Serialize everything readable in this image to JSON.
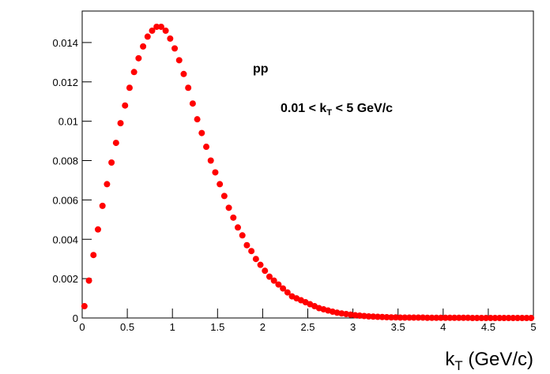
{
  "chart_data": {
    "type": "scatter",
    "annotations": [
      [
        "pp"
      ],
      [
        "0.01 < k",
        "T",
        " < 5 GeV/c"
      ]
    ],
    "x_label": [
      "k",
      "T",
      " (GeV/c)"
    ],
    "xlim": [
      0,
      5
    ],
    "xticks": [
      0,
      0.5,
      1,
      1.5,
      2,
      2.5,
      3,
      3.5,
      4,
      4.5,
      5
    ],
    "ylim": [
      0,
      0.0156
    ],
    "yticks": [
      0,
      0.002,
      0.004,
      0.006,
      0.008,
      0.01,
      0.012,
      0.014
    ],
    "color": "#ff0000",
    "x": [
      0.025,
      0.075,
      0.125,
      0.175,
      0.225,
      0.275,
      0.325,
      0.375,
      0.425,
      0.475,
      0.525,
      0.575,
      0.625,
      0.675,
      0.725,
      0.775,
      0.825,
      0.875,
      0.925,
      0.975,
      1.025,
      1.075,
      1.125,
      1.175,
      1.225,
      1.275,
      1.325,
      1.375,
      1.425,
      1.475,
      1.525,
      1.575,
      1.625,
      1.675,
      1.725,
      1.775,
      1.825,
      1.875,
      1.925,
      1.975,
      2.025,
      2.075,
      2.125,
      2.175,
      2.225,
      2.275,
      2.325,
      2.375,
      2.425,
      2.475,
      2.525,
      2.575,
      2.625,
      2.675,
      2.725,
      2.775,
      2.825,
      2.875,
      2.925,
      2.975,
      3.025,
      3.075,
      3.125,
      3.175,
      3.225,
      3.275,
      3.325,
      3.375,
      3.425,
      3.475,
      3.525,
      3.575,
      3.625,
      3.675,
      3.725,
      3.775,
      3.825,
      3.875,
      3.925,
      3.975,
      4.025,
      4.075,
      4.125,
      4.175,
      4.225,
      4.275,
      4.325,
      4.375,
      4.425,
      4.475,
      4.525,
      4.575,
      4.625,
      4.675,
      4.725,
      4.775,
      4.825,
      4.875,
      4.925,
      4.975
    ],
    "y": [
      0.0006,
      0.0019,
      0.0032,
      0.0045,
      0.0057,
      0.0068,
      0.0079,
      0.0089,
      0.0099,
      0.0108,
      0.0117,
      0.0125,
      0.0132,
      0.0138,
      0.0143,
      0.0146,
      0.0148,
      0.0148,
      0.0146,
      0.0142,
      0.0137,
      0.0131,
      0.0124,
      0.0117,
      0.0109,
      0.0101,
      0.0094,
      0.0087,
      0.008,
      0.0074,
      0.0068,
      0.0062,
      0.0056,
      0.0051,
      0.0046,
      0.0042,
      0.0037,
      0.0034,
      0.003,
      0.0027,
      0.0024,
      0.0021,
      0.0019,
      0.0017,
      0.0015,
      0.0013,
      0.0011,
      0.001,
      0.0009,
      0.0008,
      0.0007,
      0.0006,
      0.0005,
      0.00044,
      0.00038,
      0.00032,
      0.00027,
      0.00023,
      0.0002,
      0.00017,
      0.00014,
      0.00012,
      0.0001,
      8e-05,
      7e-05,
      6e-05,
      5e-05,
      4e-05,
      3e-05,
      3e-05,
      2e-05,
      2e-05,
      2e-05,
      2e-05,
      2e-05,
      2e-05,
      1e-05,
      1e-05,
      1e-05,
      1e-05,
      1e-05,
      1e-05,
      1e-05,
      1e-05,
      1e-05,
      1e-05,
      0,
      0,
      0,
      0,
      0,
      0,
      0,
      0,
      0,
      0,
      0,
      0,
      0,
      0
    ]
  }
}
